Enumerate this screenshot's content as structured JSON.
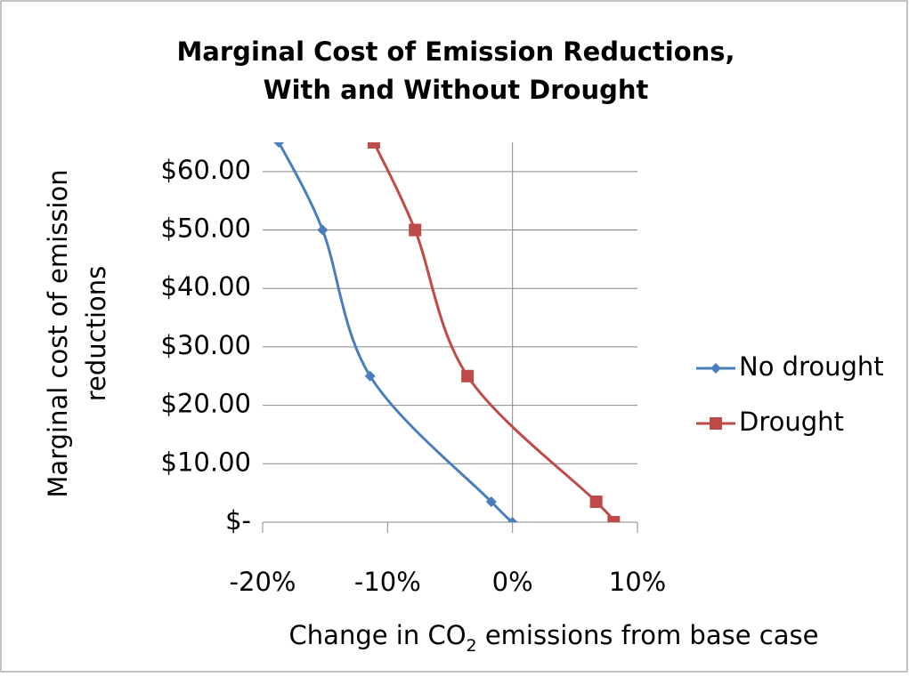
{
  "chart_data": {
    "type": "line",
    "title": [
      "Marginal Cost of Emission Reductions,",
      "With and Without Drought"
    ],
    "y_label": [
      "Marginal cost of emission",
      "reductions"
    ],
    "x_label": [
      "Change in CO",
      "2",
      " emissions from base case"
    ],
    "series": [
      {
        "name": "No drought",
        "color": "#4a7ebb",
        "marker": "diamond",
        "x": [
          -18.7,
          -15.2,
          -11.4,
          -1.7,
          0
        ],
        "values": [
          65,
          50,
          25,
          3.5,
          0
        ]
      },
      {
        "name": "Drought",
        "color": "#be4b48",
        "marker": "square",
        "x": [
          -11.1,
          -7.8,
          -3.6,
          6.7,
          8.1
        ],
        "values": [
          65,
          50,
          25,
          3.5,
          0
        ]
      }
    ],
    "xlim": [
      -20,
      10
    ],
    "xticks": [
      {
        "value": -20,
        "label": "-20%"
      },
      {
        "value": -10,
        "label": "-10%"
      },
      {
        "value": 0,
        "label": "0%"
      },
      {
        "value": 10,
        "label": "10%"
      }
    ],
    "ylim": [
      0,
      65
    ],
    "yticks": [
      {
        "value": 0,
        "label": "$-"
      },
      {
        "value": 10,
        "label": "$10.00"
      },
      {
        "value": 20,
        "label": "$20.00"
      },
      {
        "value": 30,
        "label": "$30.00"
      },
      {
        "value": 40,
        "label": "$40.00"
      },
      {
        "value": 50,
        "label": "$50.00"
      },
      {
        "value": 60,
        "label": "$60.00"
      }
    ],
    "grid": true,
    "legend": "right"
  }
}
